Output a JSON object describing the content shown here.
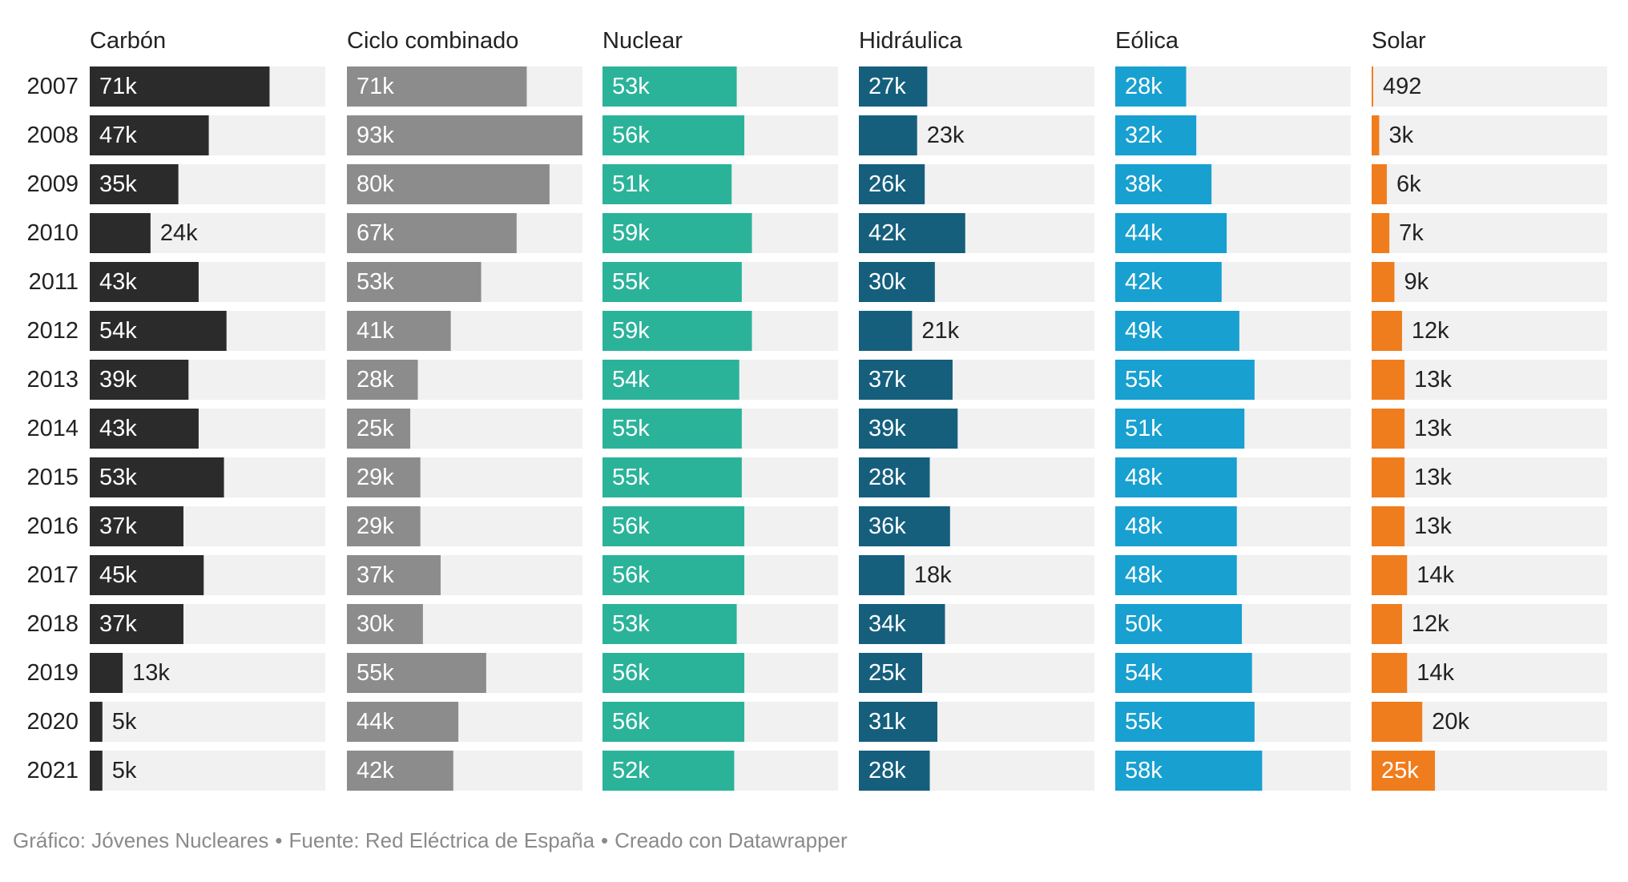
{
  "chart_data": {
    "type": "bar",
    "title": "",
    "categories": [
      "2007",
      "2008",
      "2009",
      "2010",
      "2011",
      "2012",
      "2013",
      "2014",
      "2015",
      "2016",
      "2017",
      "2018",
      "2019",
      "2020",
      "2021"
    ],
    "series": [
      {
        "name": "Carbón",
        "color": "#2b2b2b",
        "values": [
          71000,
          47000,
          35000,
          24000,
          43000,
          54000,
          39000,
          43000,
          53000,
          37000,
          45000,
          37000,
          13000,
          5000,
          5000
        ],
        "labels": [
          "71k",
          "47k",
          "35k",
          "24k",
          "43k",
          "54k",
          "39k",
          "43k",
          "53k",
          "37k",
          "45k",
          "37k",
          "13k",
          "5k",
          "5k"
        ]
      },
      {
        "name": "Ciclo combinado",
        "color": "#8c8c8c",
        "values": [
          71000,
          93000,
          80000,
          67000,
          53000,
          41000,
          28000,
          25000,
          29000,
          29000,
          37000,
          30000,
          55000,
          44000,
          42000
        ],
        "labels": [
          "71k",
          "93k",
          "80k",
          "67k",
          "53k",
          "41k",
          "28k",
          "25k",
          "29k",
          "29k",
          "37k",
          "30k",
          "55k",
          "44k",
          "42k"
        ]
      },
      {
        "name": "Nuclear",
        "color": "#2bb39a",
        "values": [
          53000,
          56000,
          51000,
          59000,
          55000,
          59000,
          54000,
          55000,
          55000,
          56000,
          56000,
          53000,
          56000,
          56000,
          52000
        ],
        "labels": [
          "53k",
          "56k",
          "51k",
          "59k",
          "55k",
          "59k",
          "54k",
          "55k",
          "55k",
          "56k",
          "56k",
          "53k",
          "56k",
          "56k",
          "52k"
        ]
      },
      {
        "name": "Hidráulica",
        "color": "#155f7d",
        "values": [
          27000,
          23000,
          26000,
          42000,
          30000,
          21000,
          37000,
          39000,
          28000,
          36000,
          18000,
          34000,
          25000,
          31000,
          28000
        ],
        "labels": [
          "27k",
          "23k",
          "26k",
          "42k",
          "30k",
          "21k",
          "37k",
          "39k",
          "28k",
          "36k",
          "18k",
          "34k",
          "25k",
          "31k",
          "28k"
        ]
      },
      {
        "name": "Eólica",
        "color": "#18a0d0",
        "values": [
          28000,
          32000,
          38000,
          44000,
          42000,
          49000,
          55000,
          51000,
          48000,
          48000,
          48000,
          50000,
          54000,
          55000,
          58000
        ],
        "labels": [
          "28k",
          "32k",
          "38k",
          "44k",
          "42k",
          "49k",
          "55k",
          "51k",
          "48k",
          "48k",
          "48k",
          "50k",
          "54k",
          "55k",
          "58k"
        ]
      },
      {
        "name": "Solar",
        "color": "#f07d1d",
        "values": [
          492,
          3000,
          6000,
          7000,
          9000,
          12000,
          13000,
          13000,
          13000,
          13000,
          14000,
          12000,
          14000,
          20000,
          25000
        ],
        "labels": [
          "492",
          "3k",
          "6k",
          "7k",
          "9k",
          "12k",
          "13k",
          "13k",
          "13k",
          "13k",
          "14k",
          "12k",
          "14k",
          "20k",
          "25k"
        ]
      }
    ],
    "xlim": [
      0,
      93000
    ],
    "legend": "none"
  },
  "footer": {
    "graphic": "Gráfico: Jóvenes Nucleares",
    "source": "Fuente: Red Eléctrica de España",
    "tool": "Creado con Datawrapper",
    "separator": "•"
  }
}
